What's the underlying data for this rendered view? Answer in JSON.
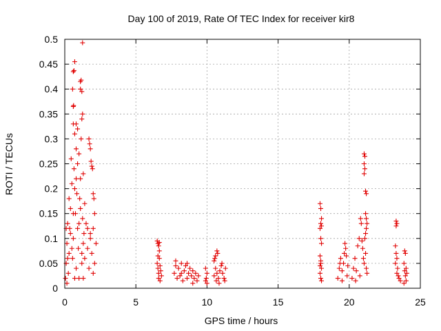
{
  "chart_data": {
    "type": "scatter",
    "title": "Day 100 of 2019, Rate Of TEC Index for receiver kir8",
    "xlabel": "GPS time / hours",
    "ylabel": "ROTI / TECUs",
    "xlim": [
      0,
      25
    ],
    "ylim": [
      0,
      0.5
    ],
    "xticks": [
      0,
      5,
      10,
      15,
      20,
      25
    ],
    "yticks": [
      0,
      0.05,
      0.1,
      0.15,
      0.2,
      0.25,
      0.3,
      0.35,
      0.4,
      0.45,
      0.5
    ],
    "xtick_labels": [
      "0",
      "5",
      "10",
      "15",
      "20",
      "25"
    ],
    "ytick_labels": [
      "0",
      "0.05",
      "0.1",
      "0.15",
      "0.2",
      "0.25",
      "0.3",
      "0.35",
      "0.4",
      "0.45",
      "0.5"
    ],
    "grid": true,
    "marker": "+",
    "marker_color": "#e00000",
    "series": [
      {
        "name": "ROTI",
        "points": [
          [
            0.05,
            0.02
          ],
          [
            0.1,
            0.05
          ],
          [
            0.15,
            0.09
          ],
          [
            0.2,
            0.13
          ],
          [
            0.25,
            0.03
          ],
          [
            0.3,
            0.07
          ],
          [
            0.35,
            0.12
          ],
          [
            0.4,
            0.16
          ],
          [
            0.45,
            0.26
          ],
          [
            0.5,
            0.21
          ],
          [
            0.55,
            0.06
          ],
          [
            0.6,
            0.1
          ],
          [
            0.65,
            0.24
          ],
          [
            0.7,
            0.31
          ],
          [
            0.75,
            0.15
          ],
          [
            0.8,
            0.04
          ],
          [
            0.85,
            0.19
          ],
          [
            0.9,
            0.12
          ],
          [
            0.95,
            0.08
          ],
          [
            1.0,
            0.27
          ],
          [
            1.05,
            0.18
          ],
          [
            1.1,
            0.22
          ],
          [
            1.15,
            0.3
          ],
          [
            1.2,
            0.05
          ],
          [
            1.25,
            0.14
          ],
          [
            1.3,
            0.23
          ],
          [
            1.35,
            0.11
          ],
          [
            1.4,
            0.06
          ],
          [
            1.5,
            0.13
          ],
          [
            1.6,
            0.08
          ],
          [
            1.7,
            0.04
          ],
          [
            1.8,
            0.11
          ],
          [
            1.9,
            0.07
          ],
          [
            2.0,
            0.12
          ],
          [
            2.1,
            0.05
          ],
          [
            2.2,
            0.09
          ],
          [
            0.1,
            0.12
          ],
          [
            0.3,
            0.18
          ],
          [
            0.5,
            0.08
          ],
          [
            0.7,
            0.2
          ],
          [
            0.9,
            0.25
          ],
          [
            1.1,
            0.16
          ],
          [
            1.3,
            0.09
          ],
          [
            0.2,
            0.06
          ],
          [
            0.4,
            0.11
          ],
          [
            0.6,
            0.15
          ],
          [
            0.8,
            0.28
          ],
          [
            1.0,
            0.13
          ],
          [
            1.2,
            0.07
          ],
          [
            1.4,
            0.17
          ],
          [
            0.6,
            0.33
          ],
          [
            0.8,
            0.22
          ],
          [
            1.0,
            0.02
          ],
          [
            1.6,
            0.12
          ],
          [
            1.8,
            0.1
          ],
          [
            2.0,
            0.03
          ],
          [
            1.3,
            0.02
          ],
          [
            0.15,
            0.01
          ],
          [
            0.7,
            0.02
          ],
          [
            0.6,
            0.365
          ],
          [
            0.62,
            0.367
          ],
          [
            0.55,
            0.4
          ],
          [
            0.6,
            0.435
          ],
          [
            0.65,
            0.437
          ],
          [
            0.7,
            0.455
          ],
          [
            1.1,
            0.415
          ],
          [
            1.15,
            0.418
          ],
          [
            1.1,
            0.4
          ],
          [
            1.2,
            0.395
          ],
          [
            1.25,
            0.493
          ],
          [
            1.2,
            0.34
          ],
          [
            1.25,
            0.35
          ],
          [
            0.9,
            0.32
          ],
          [
            0.8,
            0.33
          ],
          [
            1.7,
            0.3
          ],
          [
            1.75,
            0.29
          ],
          [
            1.8,
            0.28
          ],
          [
            1.85,
            0.255
          ],
          [
            1.9,
            0.245
          ],
          [
            1.95,
            0.24
          ],
          [
            2.0,
            0.19
          ],
          [
            2.05,
            0.18
          ],
          [
            2.1,
            0.15
          ],
          [
            6.5,
            0.095
          ],
          [
            6.55,
            0.09
          ],
          [
            6.6,
            0.085
          ],
          [
            6.65,
            0.092
          ],
          [
            6.5,
            0.05
          ],
          [
            6.55,
            0.04
          ],
          [
            6.6,
            0.03
          ],
          [
            6.65,
            0.06
          ],
          [
            6.7,
            0.045
          ],
          [
            6.75,
            0.035
          ],
          [
            6.8,
            0.025
          ],
          [
            6.6,
            0.02
          ],
          [
            6.7,
            0.015
          ],
          [
            6.55,
            0.065
          ],
          [
            6.65,
            0.075
          ],
          [
            7.7,
            0.03
          ],
          [
            7.8,
            0.045
          ],
          [
            7.9,
            0.02
          ],
          [
            8.0,
            0.04
          ],
          [
            8.1,
            0.025
          ],
          [
            8.2,
            0.05
          ],
          [
            8.3,
            0.015
          ],
          [
            8.4,
            0.035
          ],
          [
            8.5,
            0.045
          ],
          [
            8.6,
            0.02
          ],
          [
            8.7,
            0.03
          ],
          [
            8.8,
            0.04
          ],
          [
            8.9,
            0.025
          ],
          [
            9.0,
            0.035
          ],
          [
            9.1,
            0.02
          ],
          [
            9.2,
            0.03
          ],
          [
            9.3,
            0.015
          ],
          [
            9.4,
            0.025
          ],
          [
            7.8,
            0.055
          ],
          [
            8.2,
            0.03
          ],
          [
            8.6,
            0.05
          ],
          [
            9.0,
            0.01
          ],
          [
            9.9,
            0.04
          ],
          [
            10.0,
            0.03
          ],
          [
            9.95,
            0.02
          ],
          [
            10.0,
            0.01
          ],
          [
            9.9,
            0.015
          ],
          [
            10.5,
            0.055
          ],
          [
            10.55,
            0.06
          ],
          [
            10.6,
            0.065
          ],
          [
            10.7,
            0.075
          ],
          [
            10.75,
            0.07
          ],
          [
            10.6,
            0.04
          ],
          [
            10.7,
            0.03
          ],
          [
            10.8,
            0.02
          ],
          [
            10.9,
            0.035
          ],
          [
            11.0,
            0.045
          ],
          [
            11.1,
            0.03
          ],
          [
            11.2,
            0.02
          ],
          [
            11.3,
            0.04
          ],
          [
            10.5,
            0.025
          ],
          [
            10.65,
            0.015
          ],
          [
            10.85,
            0.01
          ],
          [
            11.05,
            0.05
          ],
          [
            11.25,
            0.015
          ],
          [
            17.95,
            0.17
          ],
          [
            18.0,
            0.16
          ],
          [
            18.05,
            0.14
          ],
          [
            18.0,
            0.13
          ],
          [
            17.95,
            0.12
          ],
          [
            18.05,
            0.125
          ],
          [
            18.0,
            0.1
          ],
          [
            18.05,
            0.09
          ],
          [
            17.95,
            0.065
          ],
          [
            18.0,
            0.05
          ],
          [
            18.05,
            0.04
          ],
          [
            17.95,
            0.03
          ],
          [
            18.0,
            0.02
          ],
          [
            18.05,
            0.015
          ],
          [
            18.0,
            0.055
          ],
          [
            17.95,
            0.045
          ],
          [
            19.2,
            0.02
          ],
          [
            19.3,
            0.04
          ],
          [
            19.4,
            0.06
          ],
          [
            19.5,
            0.035
          ],
          [
            19.6,
            0.05
          ],
          [
            19.7,
            0.09
          ],
          [
            19.75,
            0.08
          ],
          [
            19.8,
            0.065
          ],
          [
            19.85,
            0.025
          ],
          [
            19.9,
            0.045
          ],
          [
            19.5,
            0.015
          ],
          [
            19.65,
            0.07
          ],
          [
            19.35,
            0.05
          ],
          [
            20.2,
            0.02
          ],
          [
            20.3,
            0.04
          ],
          [
            20.4,
            0.06
          ],
          [
            20.5,
            0.035
          ],
          [
            20.6,
            0.085
          ],
          [
            20.7,
            0.1
          ],
          [
            20.8,
            0.14
          ],
          [
            20.85,
            0.13
          ],
          [
            20.9,
            0.095
          ],
          [
            20.95,
            0.08
          ],
          [
            21.0,
            0.06
          ],
          [
            21.05,
            0.05
          ],
          [
            21.1,
            0.1
          ],
          [
            21.15,
            0.07
          ],
          [
            21.2,
            0.04
          ],
          [
            21.25,
            0.03
          ],
          [
            20.45,
            0.015
          ],
          [
            20.75,
            0.025
          ],
          [
            21.05,
            0.27
          ],
          [
            21.1,
            0.265
          ],
          [
            21.05,
            0.25
          ],
          [
            21.1,
            0.24
          ],
          [
            21.05,
            0.23
          ],
          [
            21.15,
            0.195
          ],
          [
            21.2,
            0.19
          ],
          [
            21.15,
            0.15
          ],
          [
            21.2,
            0.14
          ],
          [
            21.25,
            0.13
          ],
          [
            21.15,
            0.11
          ],
          [
            21.2,
            0.12
          ],
          [
            23.3,
            0.135
          ],
          [
            23.35,
            0.13
          ],
          [
            23.3,
            0.125
          ],
          [
            23.25,
            0.085
          ],
          [
            23.3,
            0.07
          ],
          [
            23.35,
            0.06
          ],
          [
            23.25,
            0.05
          ],
          [
            23.4,
            0.04
          ],
          [
            23.35,
            0.03
          ],
          [
            23.45,
            0.025
          ],
          [
            23.5,
            0.02
          ],
          [
            23.6,
            0.015
          ],
          [
            23.9,
            0.075
          ],
          [
            23.95,
            0.07
          ],
          [
            23.85,
            0.05
          ],
          [
            24.0,
            0.04
          ],
          [
            23.9,
            0.035
          ],
          [
            23.95,
            0.025
          ],
          [
            24.0,
            0.015
          ],
          [
            23.85,
            0.01
          ],
          [
            24.05,
            0.03
          ]
        ]
      }
    ]
  }
}
